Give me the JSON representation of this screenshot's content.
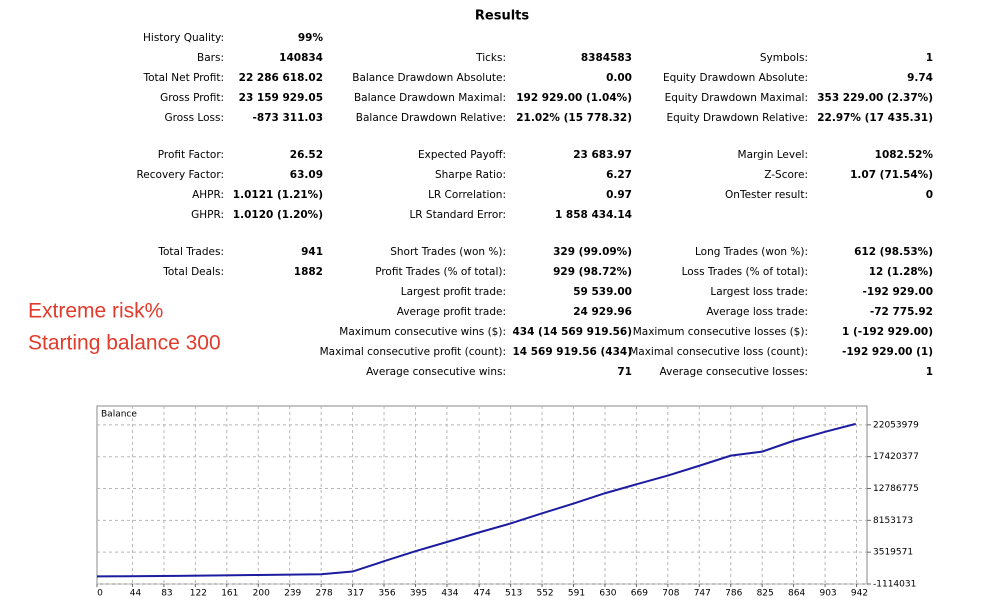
{
  "report": {
    "title": "Results",
    "sections": [
      [
        {
          "left": [
            "History Quality:",
            "99%"
          ]
        },
        {
          "left": [
            "Bars:",
            "140834"
          ],
          "mid": [
            "Ticks:",
            "8384583"
          ],
          "right": [
            "Symbols:",
            "1"
          ]
        },
        {
          "left": [
            "Total Net Profit:",
            "22 286 618.02"
          ],
          "mid": [
            "Balance Drawdown Absolute:",
            "0.00"
          ],
          "right": [
            "Equity Drawdown Absolute:",
            "9.74"
          ]
        },
        {
          "left": [
            "Gross Profit:",
            "23 159 929.05"
          ],
          "mid": [
            "Balance Drawdown Maximal:",
            "192 929.00 (1.04%)"
          ],
          "right": [
            "Equity Drawdown Maximal:",
            "353 229.00 (2.37%)"
          ]
        },
        {
          "left": [
            "Gross Loss:",
            "-873 311.03"
          ],
          "mid": [
            "Balance Drawdown Relative:",
            "21.02% (15 778.32)"
          ],
          "right": [
            "Equity Drawdown Relative:",
            "22.97% (17 435.31)"
          ]
        }
      ],
      [
        {
          "left": [
            "Profit Factor:",
            "26.52"
          ],
          "mid": [
            "Expected Payoff:",
            "23 683.97"
          ],
          "right": [
            "Margin Level:",
            "1082.52%"
          ]
        },
        {
          "left": [
            "Recovery Factor:",
            "63.09"
          ],
          "mid": [
            "Sharpe Ratio:",
            "6.27"
          ],
          "right": [
            "Z-Score:",
            "1.07 (71.54%)"
          ]
        },
        {
          "left": [
            "AHPR:",
            "1.0121 (1.21%)"
          ],
          "mid": [
            "LR Correlation:",
            "0.97"
          ],
          "right": [
            "OnTester result:",
            "0"
          ]
        },
        {
          "left": [
            "GHPR:",
            "1.0120 (1.20%)"
          ],
          "mid": [
            "LR Standard Error:",
            "1 858 434.14"
          ]
        }
      ],
      [
        {
          "left": [
            "Total Trades:",
            "941"
          ],
          "mid": [
            "Short Trades (won %):",
            "329 (99.09%)"
          ],
          "right": [
            "Long Trades (won %):",
            "612 (98.53%)"
          ]
        },
        {
          "left": [
            "Total Deals:",
            "1882"
          ],
          "mid": [
            "Profit Trades (% of total):",
            "929 (98.72%)"
          ],
          "right": [
            "Loss Trades (% of total):",
            "12 (1.28%)"
          ]
        },
        {
          "mid": [
            "Largest profit trade:",
            "59 539.00"
          ],
          "right": [
            "Largest loss trade:",
            "-192 929.00"
          ]
        },
        {
          "mid": [
            "Average profit trade:",
            "24 929.96"
          ],
          "right": [
            "Average loss trade:",
            "-72 775.92"
          ]
        },
        {
          "mid": [
            "Maximum consecutive wins ($):",
            "434 (14 569 919.56)"
          ],
          "right": [
            "Maximum consecutive losses ($):",
            "1 (-192 929.00)"
          ]
        },
        {
          "mid": [
            "Maximal consecutive profit (count):",
            "14 569 919.56 (434)"
          ],
          "right": [
            "Maximal consecutive loss (count):",
            "-192 929.00 (1)"
          ]
        },
        {
          "mid": [
            "Average consecutive wins:",
            "71"
          ],
          "right": [
            "Average consecutive losses:",
            "1"
          ]
        }
      ]
    ]
  },
  "notes": [
    "Extreme risk%",
    "Starting balance 300"
  ],
  "chart_data": {
    "type": "line",
    "x": [
      0,
      100,
      200,
      278,
      317,
      356,
      395,
      434,
      474,
      513,
      552,
      591,
      630,
      669,
      708,
      747,
      786,
      825,
      864,
      903,
      941
    ],
    "series": [
      {
        "name": "Balance",
        "color": "#1c1ca0",
        "values": [
          300,
          60000,
          200000,
          300000,
          700000,
          2200000,
          3660000,
          5000000,
          6400000,
          7700000,
          9170000,
          10600000,
          12100000,
          13400000,
          14670000,
          16100000,
          17570000,
          18150000,
          19740000,
          21040000,
          22200000
        ]
      }
    ],
    "xlim": [
      0,
      955
    ],
    "xticks": [
      0,
      44,
      83,
      122,
      161,
      200,
      239,
      278,
      317,
      356,
      395,
      434,
      474,
      513,
      552,
      591,
      630,
      669,
      708,
      747,
      786,
      825,
      864,
      903,
      942
    ],
    "ylim": [
      -1114031,
      24800000
    ],
    "yticks": [
      -1114031,
      3519571,
      8153173,
      12786775,
      17420377,
      22053979
    ],
    "grid": true
  }
}
